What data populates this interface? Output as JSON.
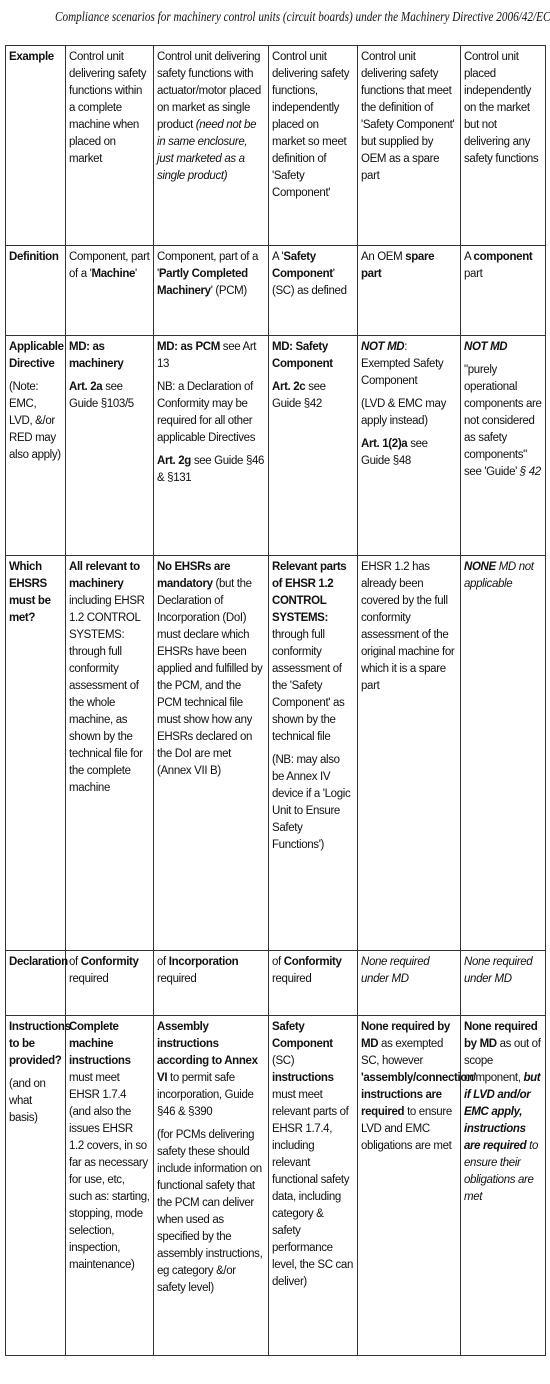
{
  "header": {
    "title": "Compliance scenarios for machinery control units (circuit boards) under the Machinery Directive 2006/42/EC"
  },
  "table": {
    "rows": [
      [
        [
          [
            {
              "text": "Example",
              "style": "b"
            }
          ]
        ],
        [
          [
            "Control unit delivering safety functions within a complete machine when placed on market"
          ]
        ],
        [
          [
            "Control unit delivering safety functions with actuator/motor placed on market as single product ",
            {
              "text": "(need not be in same enclosure, just marketed as a single product)",
              "style": "i"
            }
          ]
        ],
        [
          [
            "Control unit delivering safety functions, independently placed on market so meet definition of 'Safety Component'"
          ]
        ],
        [
          [
            "Control unit delivering safety functions that meet the definition of 'Safety Component' but supplied by OEM as a spare part"
          ]
        ],
        [
          [
            "Control unit placed independently on the market but not delivering any safety functions"
          ]
        ]
      ],
      [
        [
          [
            {
              "text": "Definition",
              "style": "b"
            }
          ]
        ],
        [
          [
            "Component, part of a '",
            {
              "text": "Machine",
              "style": "b"
            },
            "'"
          ]
        ],
        [
          [
            "Component, part of a '",
            {
              "text": "Partly Completed Machinery",
              "style": "b"
            },
            "' (PCM)"
          ]
        ],
        [
          [
            "A '",
            {
              "text": "Safety Component",
              "style": "b"
            },
            "' (SC) as defined"
          ]
        ],
        [
          [
            "An OEM ",
            {
              "text": "spare part",
              "style": "b"
            }
          ]
        ],
        [
          [
            "A ",
            {
              "text": "component",
              "style": "b"
            },
            " part"
          ]
        ]
      ],
      [
        [
          [
            {
              "text": "Applicable Directive",
              "style": "b"
            }
          ],
          [
            "(Note: EMC, LVD, &/or RED may also apply)"
          ]
        ],
        [
          [
            {
              "text": "MD: as machinery",
              "style": "b"
            }
          ],
          [
            {
              "text": "Art. 2a",
              "style": "b"
            },
            " see Guide §103/5"
          ]
        ],
        [
          [
            {
              "text": "MD: as PCM",
              "style": "b"
            },
            " see Art 13"
          ],
          [
            "NB: a Declaration of Conformity may be required for all other applicable Directives"
          ],
          [
            {
              "text": "Art. 2g",
              "style": "b"
            },
            " see Guide §46 & §131"
          ]
        ],
        [
          [
            {
              "text": "MD: Safety Component",
              "style": "b"
            }
          ],
          [
            {
              "text": "Art. 2c",
              "style": "b"
            },
            " see Guide §42"
          ]
        ],
        [
          [
            {
              "text": "NOT MD",
              "style": "bi"
            },
            ": Exempted Safety Component"
          ],
          [
            "(LVD & EMC may apply instead)"
          ],
          [
            {
              "text": "Art. 1(2)a",
              "style": "b"
            },
            " see Guide §48"
          ]
        ],
        [
          [
            {
              "text": "NOT MD",
              "style": "bi"
            }
          ],
          [
            "\"purely operational components are not considered as safety components\" see 'Guide' ",
            {
              "text": "§ 42",
              "style": "i"
            }
          ]
        ]
      ],
      [
        [
          [
            {
              "text": "Which EHSRS must be met?",
              "style": "b"
            }
          ]
        ],
        [
          [
            {
              "text": "All relevant to machinery",
              "style": "b"
            },
            " including EHSR 1.2 CONTROL SYSTEMS: through full conformity assessment of the whole machine, as shown by the technical file for the complete machine"
          ]
        ],
        [
          [
            {
              "text": "No EHSRs are mandatory",
              "style": "b"
            },
            " (but the Declaration of Incorporation (DoI) must declare which EHSRs have been applied and fulfilled by the PCM, and the PCM technical file must show how any EHSRs declared on the DoI are met (Annex VII B)"
          ]
        ],
        [
          [
            {
              "text": "Relevant parts of EHSR 1.2 CONTROL SYSTEMS:",
              "style": "b"
            },
            " through full conformity assessment of the 'Safety Component' as shown by the technical file"
          ],
          [
            "(NB: may also be Annex IV device if a 'Logic Unit to Ensure Safety Functions')"
          ]
        ],
        [
          [
            "EHSR 1.2 has already been covered by the full conformity assessment of the original machine for which it is a spare part"
          ]
        ],
        [
          [
            {
              "text": "NONE",
              "style": "bi"
            },
            " ",
            {
              "text": "MD not applicable",
              "style": "i"
            }
          ]
        ]
      ],
      [
        [
          [
            {
              "text": "Declaration",
              "style": "b"
            }
          ]
        ],
        [
          [
            "of ",
            {
              "text": "Conformity",
              "style": "b"
            },
            " required"
          ]
        ],
        [
          [
            "of ",
            {
              "text": "Incorporation",
              "style": "b"
            },
            " required"
          ]
        ],
        [
          [
            "of ",
            {
              "text": "Conformity",
              "style": "b"
            },
            " required"
          ]
        ],
        [
          [
            {
              "text": "None required under MD",
              "style": "i"
            }
          ]
        ],
        [
          [
            {
              "text": "None required under MD",
              "style": "i"
            }
          ]
        ]
      ],
      [
        [
          [
            {
              "text": "Instructions to be provided?",
              "style": "b"
            }
          ],
          [
            "(and on what basis)"
          ]
        ],
        [
          [
            {
              "text": "Complete machine instructions",
              "style": "b"
            },
            " must meet EHSR 1.7.4 (and also the issues EHSR 1.2 covers, in so far as necessary for use, etc, such as: starting, stopping, mode selection, inspection, maintenance)"
          ]
        ],
        [
          [
            {
              "text": "Assembly instructions according to Annex VI",
              "style": "b"
            },
            " to permit safe incorporation, Guide §46 & §390"
          ],
          [
            "(for PCMs delivering safety these should include information on functional safety that the PCM can deliver when used as specified by the assembly instructions, eg category &/or safety level)"
          ]
        ],
        [
          [
            {
              "text": "Safety Component",
              "style": "b"
            },
            " (SC) ",
            {
              "text": "instructions",
              "style": "b"
            },
            " must meet relevant parts of EHSR 1.7.4, including relevant functional safety data, including category & safety performance level, the SC can deliver)"
          ]
        ],
        [
          [
            {
              "text": "None required by MD",
              "style": "b"
            },
            " as exempted SC, however ",
            {
              "text": "'assembly/connection' instructions are required",
              "style": "b"
            },
            " to ensure LVD and EMC obligations are met"
          ]
        ],
        [
          [
            {
              "text": "None required by MD",
              "style": "b"
            },
            " as out of scope component, ",
            {
              "text": "but if LVD and/or EMC apply, instructions are required",
              "style": "bi"
            },
            {
              "text": " to ensure their obligations are met",
              "style": "i"
            }
          ]
        ]
      ]
    ]
  }
}
